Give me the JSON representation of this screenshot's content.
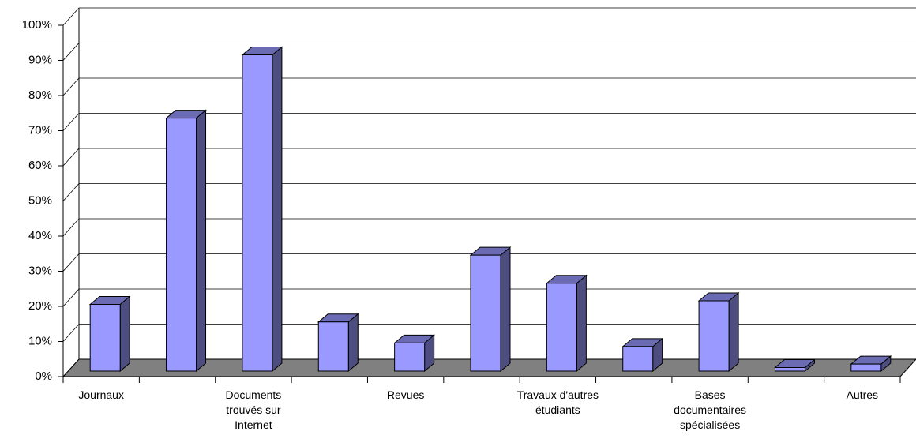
{
  "chart_data": {
    "type": "bar3d",
    "categories": [
      "Journaux",
      null,
      "Documents trouvés sur Internet",
      null,
      "Revues",
      null,
      "Travaux d'autres étudiants",
      null,
      "Bases documentaires spécialisées",
      null,
      "Autres"
    ],
    "values": [
      19,
      72,
      90,
      14,
      8,
      33,
      25,
      7,
      20,
      1,
      2
    ],
    "color": "#9999ff",
    "ylim": [
      0,
      100
    ],
    "yticks": [
      {
        "value": 0,
        "label": "0%"
      },
      {
        "value": 10,
        "label": "10%"
      },
      {
        "value": 20,
        "label": "20%"
      },
      {
        "value": 30,
        "label": "30%"
      },
      {
        "value": 40,
        "label": "40%"
      },
      {
        "value": 50,
        "label": "50%"
      },
      {
        "value": 60,
        "label": "60%"
      },
      {
        "value": 70,
        "label": "70%"
      },
      {
        "value": 80,
        "label": "80%"
      },
      {
        "value": 90,
        "label": "90%"
      },
      {
        "value": 100,
        "label": "100%"
      }
    ],
    "grid": true
  }
}
